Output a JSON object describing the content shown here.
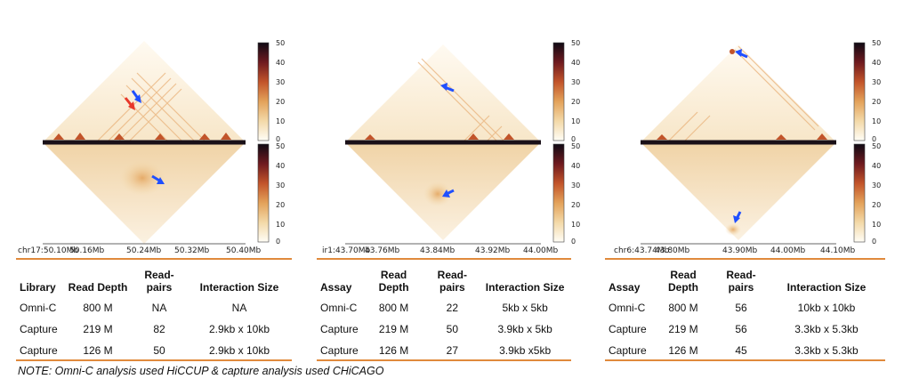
{
  "panels": [
    {
      "colorbar_top_ticks": [
        "50",
        "40",
        "30",
        "20",
        "10",
        "0"
      ],
      "colorbar_bottom_ticks": [
        "50",
        "40",
        "30",
        "20",
        "10",
        "0"
      ],
      "x_ticks": [
        "chr17:50.10Mb",
        "50.16Mb",
        "50.24Mb",
        "50.32Mb",
        "50.40Mb"
      ],
      "table": {
        "headers": [
          "Library",
          "Read Depth",
          "Read-pairs",
          "Interaction Size"
        ],
        "rows": [
          [
            "Omni-C",
            "800 M",
            "NA",
            "NA"
          ],
          [
            "Capture",
            "219 M",
            "82",
            "2.9kb x 10kb"
          ],
          [
            "Capture",
            "126 M",
            "50",
            "2.9kb x 10kb"
          ]
        ]
      }
    },
    {
      "colorbar_top_ticks": [
        "50",
        "40",
        "30",
        "20",
        "10",
        "0"
      ],
      "colorbar_bottom_ticks": [
        "50",
        "40",
        "30",
        "20",
        "10",
        "0"
      ],
      "x_ticks": [
        "ir1:43.70Mb",
        "43.76Mb",
        "43.84Mb",
        "43.92Mb",
        "44.00Mb"
      ],
      "table": {
        "headers": [
          "Assay",
          "Read Depth",
          "Read-pairs",
          "Interaction Size"
        ],
        "rows": [
          [
            "Omni-C",
            "800 M",
            "22",
            "5kb x 5kb"
          ],
          [
            "Capture",
            "219 M",
            "50",
            "3.9kb x 5kb"
          ],
          [
            "Capture",
            "126 M",
            "27",
            "3.9kb x5kb"
          ]
        ]
      }
    },
    {
      "colorbar_top_ticks": [
        "50",
        "40",
        "30",
        "20",
        "10",
        "0"
      ],
      "colorbar_bottom_ticks": [
        "50",
        "40",
        "30",
        "20",
        "10",
        "0"
      ],
      "x_ticks": [
        "chr6:43.74Mb",
        "43.80Mb",
        "43.90Mb",
        "44.00Mb",
        "44.10Mb"
      ],
      "table": {
        "headers": [
          "Assay",
          "Read Depth",
          "Read-pairs",
          "Interaction Size"
        ],
        "rows": [
          [
            "Omni-C",
            "800 M",
            "56",
            "10kb x 10kb"
          ],
          [
            "Capture",
            "219 M",
            "56",
            "3.3kb x 5.3kb"
          ],
          [
            "Capture",
            "126 M",
            "45",
            "3.3kb x 5.3kb"
          ]
        ]
      }
    }
  ],
  "note": "NOTE: Omni-C analysis used HiCCUP & capture analysis used CHiCAGO",
  "colors": {
    "accent_line": "#e08a3c",
    "arrow_blue": "#1f4fff",
    "arrow_red": "#e8382a"
  }
}
